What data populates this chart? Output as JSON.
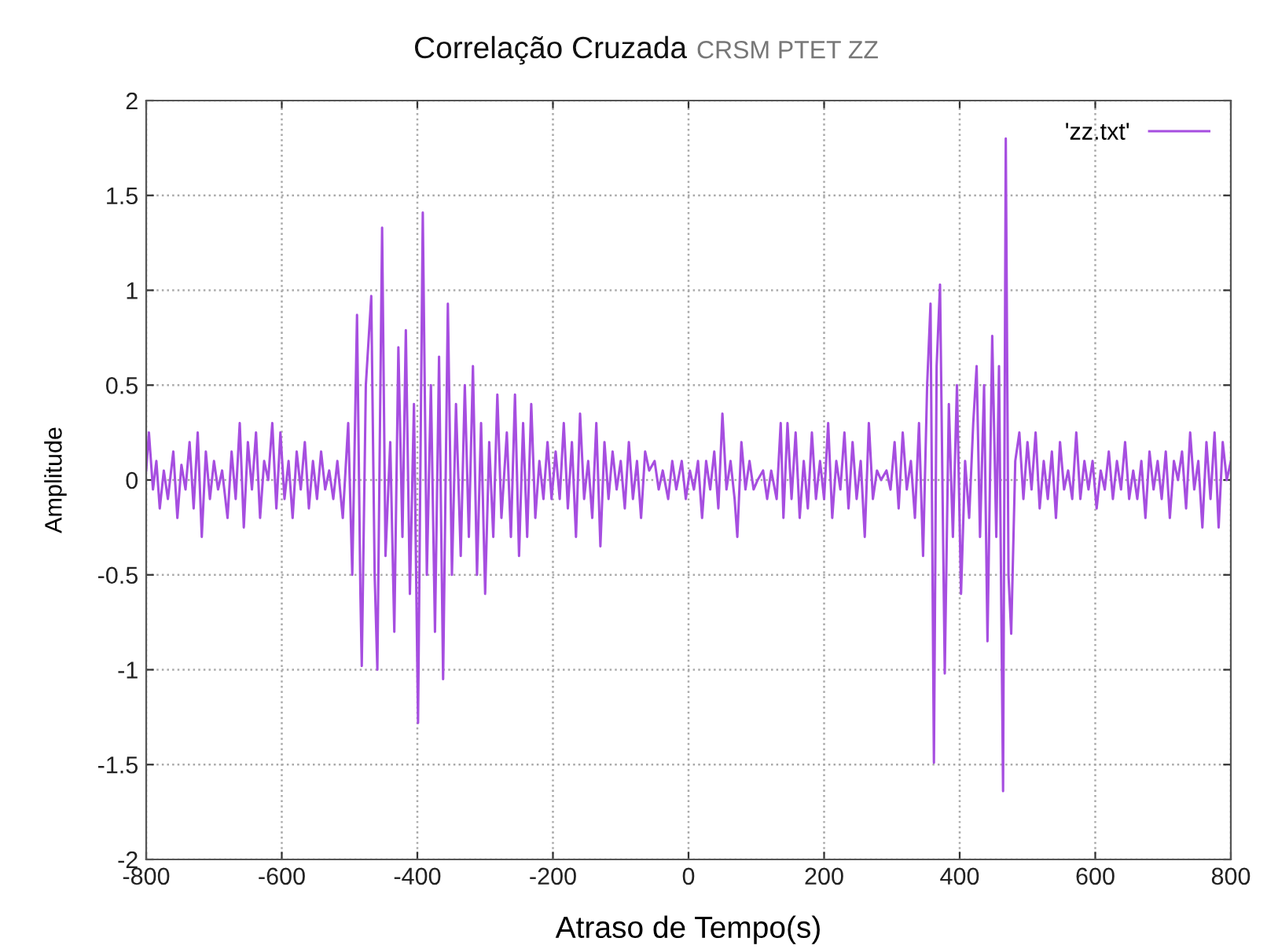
{
  "chart_data": {
    "type": "line",
    "title": "Correlação Cruzada",
    "subtitle": "CRSM PTET ZZ",
    "xlabel": "Atraso de Tempo(s)",
    "ylabel": "Amplitude",
    "xlim": [
      -800,
      800
    ],
    "xticks": [
      -800,
      -600,
      -400,
      -200,
      0,
      200,
      400,
      600,
      800
    ],
    "ylim": [
      -2,
      2
    ],
    "yticks": [
      -2,
      -1.5,
      -1,
      -0.5,
      0,
      0.5,
      1,
      1.5,
      2
    ],
    "grid": true,
    "legend": "top right",
    "line_style": "solid",
    "marker": "none",
    "series": [
      {
        "name": "'zz.txt'",
        "color": "#a64ee0",
        "x": [
          -800,
          -796,
          -790,
          -785,
          -780,
          -774,
          -768,
          -760,
          -754,
          -748,
          -742,
          -736,
          -730,
          -724,
          -718,
          -712,
          -706,
          -700,
          -694,
          -688,
          -680,
          -674,
          -668,
          -662,
          -656,
          -650,
          -644,
          -638,
          -632,
          -626,
          -620,
          -614,
          -608,
          -602,
          -596,
          -590,
          -584,
          -578,
          -572,
          -566,
          -560,
          -554,
          -548,
          -542,
          -536,
          -530,
          -524,
          -518,
          -510,
          -502,
          -496,
          -489,
          -484,
          -482,
          -476,
          -468,
          -463,
          -459,
          -452,
          -447,
          -440,
          -434,
          -428,
          -422,
          -417,
          -411,
          -405,
          -399,
          -392,
          -386,
          -380,
          -374,
          -368,
          -362,
          -355,
          -349,
          -343,
          -336,
          -330,
          -324,
          -318,
          -312,
          -306,
          -300,
          -294,
          -288,
          -282,
          -276,
          -268,
          -262,
          -256,
          -250,
          -244,
          -238,
          -232,
          -226,
          -220,
          -214,
          -208,
          -202,
          -196,
          -190,
          -184,
          -178,
          -172,
          -166,
          -160,
          -154,
          -148,
          -142,
          -136,
          -130,
          -124,
          -118,
          -112,
          -106,
          -100,
          -94,
          -88,
          -82,
          -76,
          -70,
          -64,
          -58,
          -50,
          -44,
          -38,
          -30,
          -24,
          -18,
          -10,
          -4,
          2,
          8,
          14,
          20,
          26,
          32,
          38,
          44,
          50,
          56,
          62,
          68,
          72,
          78,
          84,
          90,
          96,
          102,
          110,
          116,
          122,
          130,
          136,
          140,
          146,
          152,
          158,
          164,
          170,
          176,
          182,
          188,
          194,
          200,
          206,
          212,
          218,
          224,
          230,
          236,
          242,
          248,
          254,
          260,
          266,
          272,
          278,
          284,
          292,
          298,
          304,
          310,
          316,
          322,
          328,
          334,
          340,
          346,
          352,
          357,
          362,
          366,
          371,
          378,
          384,
          390,
          396,
          402,
          408,
          414,
          420,
          425,
          430,
          436,
          441,
          448,
          454,
          458,
          464,
          468,
          472,
          476,
          482,
          488,
          494,
          500,
          506,
          512,
          518,
          524,
          530,
          536,
          542,
          548,
          554,
          560,
          566,
          572,
          578,
          584,
          590,
          596,
          602,
          608,
          614,
          620,
          626,
          632,
          638,
          644,
          650,
          656,
          662,
          668,
          674,
          680,
          686,
          692,
          698,
          704,
          710,
          716,
          722,
          728,
          734,
          740,
          746,
          752,
          758,
          764,
          770,
          776,
          782,
          788,
          794,
          800
        ],
        "values": [
          0.05,
          0.25,
          -0.05,
          0.1,
          -0.15,
          0.05,
          -0.1,
          0.15,
          -0.2,
          0.08,
          -0.05,
          0.2,
          -0.15,
          0.25,
          -0.3,
          0.15,
          -0.1,
          0.1,
          -0.05,
          0.05,
          -0.2,
          0.15,
          -0.1,
          0.3,
          -0.25,
          0.2,
          -0.05,
          0.25,
          -0.2,
          0.1,
          0.0,
          0.3,
          -0.15,
          0.25,
          -0.1,
          0.1,
          -0.2,
          0.15,
          -0.05,
          0.2,
          -0.15,
          0.1,
          -0.1,
          0.15,
          -0.05,
          0.05,
          -0.1,
          0.1,
          -0.2,
          0.3,
          -0.5,
          0.87,
          -0.6,
          -0.98,
          0.5,
          0.97,
          -0.5,
          -1.0,
          1.33,
          -0.4,
          0.2,
          -0.8,
          0.7,
          -0.3,
          0.79,
          -0.6,
          0.4,
          -1.28,
          1.41,
          -0.5,
          0.5,
          -0.8,
          0.65,
          -1.05,
          0.93,
          -0.5,
          0.4,
          -0.4,
          0.5,
          -0.3,
          0.6,
          -0.5,
          0.3,
          -0.6,
          0.2,
          -0.3,
          0.45,
          -0.2,
          0.25,
          -0.3,
          0.45,
          -0.4,
          0.3,
          -0.3,
          0.4,
          -0.2,
          0.1,
          -0.1,
          0.2,
          -0.1,
          0.15,
          -0.1,
          0.3,
          -0.15,
          0.2,
          -0.3,
          0.35,
          -0.1,
          0.1,
          -0.2,
          0.3,
          -0.35,
          0.2,
          -0.1,
          0.15,
          -0.05,
          0.1,
          -0.15,
          0.2,
          -0.1,
          0.1,
          -0.2,
          0.15,
          0.05,
          0.1,
          -0.05,
          0.05,
          -0.1,
          0.1,
          -0.05,
          0.1,
          -0.1,
          0.05,
          -0.05,
          0.1,
          -0.2,
          0.1,
          -0.05,
          0.15,
          -0.15,
          0.35,
          -0.05,
          0.1,
          -0.1,
          -0.3,
          0.2,
          -0.05,
          0.1,
          -0.05,
          0.0,
          0.05,
          -0.1,
          0.05,
          -0.1,
          0.3,
          -0.2,
          0.3,
          -0.1,
          0.25,
          -0.2,
          0.1,
          -0.15,
          0.25,
          -0.1,
          0.1,
          -0.1,
          0.3,
          -0.2,
          0.1,
          -0.05,
          0.25,
          -0.15,
          0.2,
          -0.1,
          0.1,
          -0.3,
          0.3,
          -0.1,
          0.05,
          0.0,
          0.05,
          -0.05,
          0.2,
          -0.15,
          0.25,
          -0.05,
          0.1,
          -0.2,
          0.3,
          -0.4,
          0.5,
          0.93,
          -1.49,
          0.6,
          1.03,
          -1.02,
          0.4,
          -0.3,
          0.5,
          -0.6,
          0.1,
          -0.2,
          0.3,
          0.6,
          -0.3,
          0.5,
          -0.85,
          0.76,
          -0.3,
          0.6,
          -1.64,
          1.8,
          -0.5,
          -0.81,
          0.1,
          0.25,
          -0.1,
          0.2,
          -0.05,
          0.25,
          -0.15,
          0.1,
          -0.1,
          0.15,
          -0.2,
          0.2,
          -0.05,
          0.05,
          -0.1,
          0.25,
          -0.1,
          0.1,
          -0.05,
          0.1,
          -0.15,
          0.05,
          -0.05,
          0.15,
          -0.1,
          0.1,
          -0.05,
          0.2,
          -0.1,
          0.05,
          -0.1,
          0.1,
          -0.2,
          0.15,
          -0.05,
          0.1,
          -0.1,
          0.15,
          -0.2,
          0.1,
          0.0,
          0.15,
          -0.15,
          0.25,
          -0.05,
          0.1,
          -0.25,
          0.2,
          -0.1,
          0.25,
          -0.25,
          0.2,
          0.0,
          0.1
        ]
      }
    ]
  }
}
